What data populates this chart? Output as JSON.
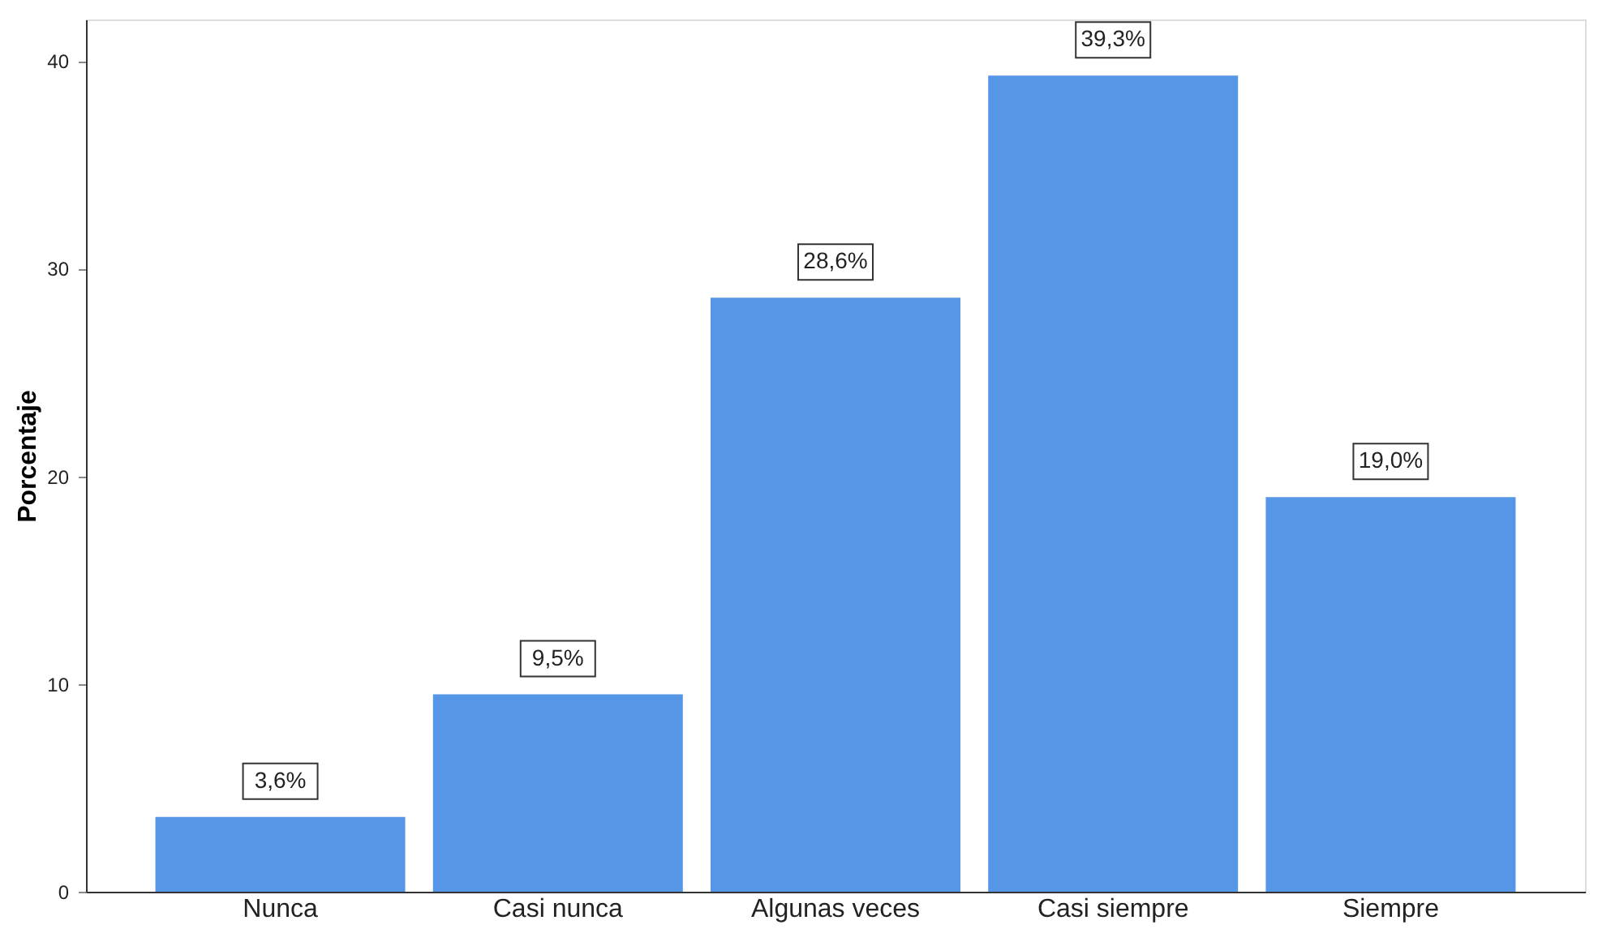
{
  "chart_data": {
    "type": "bar",
    "ylabel": "Porcentaje",
    "categories": [
      "Nunca",
      "Casi nunca",
      "Algunas veces",
      "Casi siempre",
      "Siempre"
    ],
    "values": [
      3.6,
      9.5,
      28.6,
      39.3,
      19.0
    ],
    "value_labels": [
      "3,6%",
      "9,5%",
      "28,6%",
      "39,3%",
      "19,0%"
    ],
    "color": "#5596e6",
    "ylim": [
      0,
      42
    ],
    "yticks": [
      0,
      10,
      20,
      30,
      40
    ],
    "grid": false
  }
}
